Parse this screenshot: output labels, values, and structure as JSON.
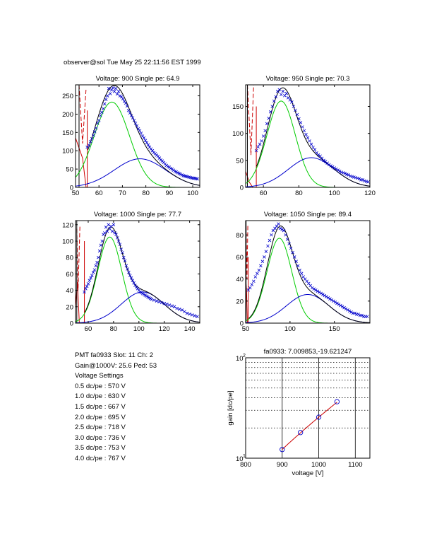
{
  "header": {
    "text": "observer@sol  Tue May 25 22:11:56 EST 1999"
  },
  "info": {
    "pmt_line": "PMT fa0933 Slot: 11 Ch: 2",
    "gain_line": "Gain@1000V: 25.6 Ped: 53",
    "settings_title": "Voltage Settings",
    "settings": [
      "0.5 dc/pe : 570 V",
      "1.0 dc/pe : 630 V",
      "1.5 dc/pe : 667 V",
      "2.0 dc/pe : 695 V",
      "2.5 dc/pe : 718 V",
      "3.0 dc/pe : 736 V",
      "3.5 dc/pe : 753 V",
      "4.0 dc/pe : 767 V"
    ]
  },
  "colors": {
    "fit_total": "#000000",
    "fit_single": "#00cc00",
    "fit_double": "#0000cc",
    "pedestal": "#cc0000",
    "data": "#0000cc"
  },
  "chart_data": [
    {
      "type": "scatter",
      "title": "Voltage: 900 Single pe: 64.9",
      "xlim": [
        50,
        103
      ],
      "ylim": [
        0,
        280
      ],
      "xticks": [
        50,
        60,
        70,
        80,
        90,
        100
      ],
      "yticks": [
        0,
        50,
        100,
        150,
        200,
        250
      ],
      "fit": {
        "cut": 55,
        "single": {
          "amp": 233,
          "mean": 65.5,
          "sigma": 7.5
        },
        "double": {
          "amp": 78,
          "mean": 77.5,
          "sigma": 11
        }
      },
      "pedestal": {
        "solid": [
          [
            50,
            135
          ],
          [
            53,
            80
          ],
          [
            54.5,
            0
          ]
        ],
        "dashed": [
          [
            51.5,
            280
          ],
          [
            53,
            120
          ],
          [
            54.5,
            270
          ]
        ],
        "threshold_x": 55,
        "threshold_y": 210
      },
      "points": [
        [
          55,
          110
        ],
        [
          55.8,
          115
        ],
        [
          56.4,
          125
        ],
        [
          57,
          133
        ],
        [
          57.6,
          142
        ],
        [
          58.2,
          152
        ],
        [
          58.8,
          162
        ],
        [
          59.4,
          175
        ],
        [
          60,
          183
        ],
        [
          60.6,
          196
        ],
        [
          61.2,
          205
        ],
        [
          61.8,
          215
        ],
        [
          62.4,
          228
        ],
        [
          63,
          240
        ],
        [
          63.6,
          250
        ],
        [
          64.2,
          270
        ],
        [
          64.8,
          256
        ],
        [
          65.4,
          266
        ],
        [
          66,
          272
        ],
        [
          66.6,
          262
        ],
        [
          67.2,
          270
        ],
        [
          67.8,
          255
        ],
        [
          68.4,
          262
        ],
        [
          69,
          250
        ],
        [
          69.6,
          247
        ],
        [
          70.2,
          242
        ],
        [
          70.8,
          235
        ],
        [
          71.4,
          230
        ],
        [
          72,
          222
        ],
        [
          72.6,
          210
        ],
        [
          73.2,
          203
        ],
        [
          73.8,
          196
        ],
        [
          74.4,
          190
        ],
        [
          75,
          183
        ],
        [
          75.6,
          175
        ],
        [
          76.2,
          168
        ],
        [
          76.8,
          160
        ],
        [
          77.4,
          155
        ],
        [
          78,
          148
        ],
        [
          78.6,
          140
        ],
        [
          79.2,
          135
        ],
        [
          79.8,
          128
        ],
        [
          80.4,
          122
        ],
        [
          81,
          116
        ],
        [
          81.6,
          110
        ],
        [
          82.2,
          105
        ],
        [
          82.8,
          100
        ],
        [
          83.4,
          95
        ],
        [
          84,
          92
        ],
        [
          84.6,
          88
        ],
        [
          85.2,
          85
        ],
        [
          85.8,
          80
        ],
        [
          86.4,
          75
        ],
        [
          87,
          72
        ],
        [
          87.6,
          68
        ],
        [
          88.2,
          64
        ],
        [
          88.8,
          60
        ],
        [
          89.4,
          57
        ],
        [
          90,
          55
        ],
        [
          90.6,
          52
        ],
        [
          91.2,
          50
        ],
        [
          91.8,
          47
        ],
        [
          92.4,
          44
        ],
        [
          93,
          42
        ],
        [
          93.6,
          40
        ],
        [
          94.2,
          38
        ],
        [
          94.8,
          36
        ],
        [
          95.4,
          34
        ],
        [
          96,
          32
        ],
        [
          96.6,
          31
        ],
        [
          97.2,
          30
        ],
        [
          97.8,
          29
        ],
        [
          98.4,
          28
        ],
        [
          99,
          27
        ],
        [
          99.6,
          26
        ],
        [
          100.2,
          25
        ],
        [
          100.8,
          25
        ],
        [
          101.4,
          24
        ],
        [
          102,
          23
        ]
      ]
    },
    {
      "type": "scatter",
      "title": "Voltage: 950 Single pe: 70.3",
      "xlim": [
        50,
        120
      ],
      "ylim": [
        0,
        190
      ],
      "xticks": [
        60,
        80,
        100,
        120
      ],
      "yticks": [
        0,
        50,
        100,
        150
      ],
      "fit": {
        "cut": 56,
        "single": {
          "amp": 160,
          "mean": 70,
          "sigma": 8
        },
        "double": {
          "amp": 55,
          "mean": 87,
          "sigma": 13
        }
      },
      "pedestal": {
        "solid": [
          [
            50,
            30
          ],
          [
            52,
            10
          ],
          [
            54,
            0
          ]
        ],
        "dashed": [
          [
            51,
            190
          ],
          [
            53,
            60
          ],
          [
            54.5,
            190
          ]
        ],
        "threshold_x": 56,
        "threshold_y": 150
      },
      "points": [
        [
          56,
          68
        ],
        [
          57,
          75
        ],
        [
          58,
          80
        ],
        [
          59,
          86
        ],
        [
          60,
          95
        ],
        [
          61,
          105
        ],
        [
          62,
          118
        ],
        [
          63,
          128
        ],
        [
          64,
          140
        ],
        [
          65,
          150
        ],
        [
          66,
          160
        ],
        [
          67,
          168
        ],
        [
          68,
          178
        ],
        [
          69,
          181
        ],
        [
          70,
          172
        ],
        [
          71,
          178
        ],
        [
          72,
          170
        ],
        [
          73,
          174
        ],
        [
          74,
          166
        ],
        [
          75,
          162
        ],
        [
          76,
          158
        ],
        [
          77,
          150
        ],
        [
          78,
          143
        ],
        [
          79,
          135
        ],
        [
          80,
          127
        ],
        [
          81,
          120
        ],
        [
          82,
          112
        ],
        [
          83,
          105
        ],
        [
          84,
          98
        ],
        [
          85,
          92
        ],
        [
          86,
          86
        ],
        [
          87,
          80
        ],
        [
          88,
          74
        ],
        [
          89,
          70
        ],
        [
          90,
          64
        ],
        [
          91,
          60
        ],
        [
          92,
          58
        ],
        [
          93,
          54
        ],
        [
          94,
          50
        ],
        [
          95,
          48
        ],
        [
          96,
          45
        ],
        [
          97,
          42
        ],
        [
          98,
          40
        ],
        [
          99,
          38
        ],
        [
          100,
          36
        ],
        [
          101,
          34
        ],
        [
          102,
          32
        ],
        [
          103,
          30
        ],
        [
          104,
          28
        ],
        [
          105,
          27
        ],
        [
          106,
          26
        ],
        [
          107,
          24
        ],
        [
          108,
          23
        ],
        [
          109,
          21
        ],
        [
          110,
          20
        ],
        [
          111,
          19
        ],
        [
          112,
          18
        ],
        [
          113,
          17
        ],
        [
          114,
          16
        ],
        [
          115,
          14
        ],
        [
          116,
          14
        ],
        [
          117,
          12
        ],
        [
          118,
          11
        ],
        [
          119,
          10
        ]
      ]
    },
    {
      "type": "scatter",
      "title": "Voltage: 1000 Single pe: 77.7",
      "xlim": [
        50,
        148
      ],
      "ylim": [
        0,
        125
      ],
      "xticks": [
        60,
        80,
        100,
        120,
        140
      ],
      "yticks": [
        0,
        20,
        40,
        60,
        80,
        100,
        120
      ],
      "fit": {
        "cut": 57,
        "single": {
          "amp": 105,
          "mean": 77,
          "sigma": 9.5
        },
        "double": {
          "amp": 38,
          "mean": 103,
          "sigma": 17
        }
      },
      "pedestal": {
        "solid": [
          [
            50,
            20
          ],
          [
            51.5,
            50
          ],
          [
            53,
            0
          ]
        ],
        "dashed": [
          [
            51,
            115
          ],
          [
            52,
            40
          ],
          [
            53.5,
            120
          ]
        ],
        "threshold_x": 57,
        "threshold_y": 100
      },
      "points": [
        [
          57,
          38
        ],
        [
          58,
          42
        ],
        [
          59,
          45
        ],
        [
          60,
          48
        ],
        [
          61,
          52
        ],
        [
          62,
          55
        ],
        [
          63,
          58
        ],
        [
          64,
          62
        ],
        [
          65,
          65
        ],
        [
          66,
          70
        ],
        [
          67,
          74
        ],
        [
          68,
          80
        ],
        [
          69,
          88
        ],
        [
          70,
          95
        ],
        [
          71,
          100
        ],
        [
          72,
          108
        ],
        [
          73,
          110
        ],
        [
          74,
          117
        ],
        [
          75,
          112
        ],
        [
          76,
          120
        ],
        [
          77,
          115
        ],
        [
          78,
          118
        ],
        [
          79,
          112
        ],
        [
          80,
          120
        ],
        [
          81,
          110
        ],
        [
          82,
          108
        ],
        [
          83,
          104
        ],
        [
          84,
          100
        ],
        [
          85,
          96
        ],
        [
          86,
          90
        ],
        [
          87,
          86
        ],
        [
          88,
          80
        ],
        [
          89,
          76
        ],
        [
          90,
          70
        ],
        [
          91,
          66
        ],
        [
          92,
          62
        ],
        [
          93,
          58
        ],
        [
          94,
          55
        ],
        [
          95,
          52
        ],
        [
          96,
          49
        ],
        [
          97,
          46
        ],
        [
          98,
          44
        ],
        [
          99,
          42
        ],
        [
          100,
          40
        ],
        [
          101,
          38
        ],
        [
          102,
          37
        ],
        [
          103,
          36
        ],
        [
          104,
          35
        ],
        [
          105,
          34
        ],
        [
          106,
          33
        ],
        [
          107,
          32
        ],
        [
          108,
          31
        ],
        [
          109,
          30
        ],
        [
          110,
          29
        ],
        [
          112,
          28
        ],
        [
          114,
          27
        ],
        [
          116,
          26
        ],
        [
          118,
          25
        ],
        [
          120,
          24
        ],
        [
          122,
          23
        ],
        [
          124,
          22
        ],
        [
          126,
          21
        ],
        [
          128,
          20
        ],
        [
          130,
          18
        ],
        [
          132,
          17
        ],
        [
          134,
          16
        ],
        [
          136,
          14
        ],
        [
          138,
          12
        ],
        [
          140,
          11
        ],
        [
          142,
          10
        ],
        [
          144,
          9
        ],
        [
          146,
          8
        ]
      ]
    },
    {
      "type": "scatter",
      "title": "Voltage: 1050 Single pe: 89.4",
      "xlim": [
        50,
        190
      ],
      "ylim": [
        0,
        93
      ],
      "xticks": [
        50,
        100,
        150
      ],
      "yticks": [
        0,
        20,
        40,
        60,
        80
      ],
      "fit": {
        "cut": 53,
        "single": {
          "amp": 77,
          "mean": 88,
          "sigma": 14
        },
        "double": {
          "amp": 26,
          "mean": 120,
          "sigma": 24
        }
      },
      "pedestal": {
        "solid": [
          [
            50,
            40
          ],
          [
            51,
            30
          ],
          [
            52,
            0
          ]
        ],
        "dashed": [
          [
            50.5,
            88
          ],
          [
            51.5,
            40
          ],
          [
            52.5,
            90
          ]
        ],
        "threshold_x": 53,
        "threshold_y": 60
      },
      "points": [
        [
          53,
          30
        ],
        [
          55,
          32
        ],
        [
          57,
          35
        ],
        [
          59,
          38
        ],
        [
          61,
          42
        ],
        [
          63,
          45
        ],
        [
          65,
          48
        ],
        [
          67,
          52
        ],
        [
          69,
          56
        ],
        [
          71,
          60
        ],
        [
          73,
          65
        ],
        [
          75,
          70
        ],
        [
          77,
          75
        ],
        [
          79,
          80
        ],
        [
          81,
          84
        ],
        [
          83,
          86
        ],
        [
          85,
          88
        ],
        [
          87,
          90
        ],
        [
          89,
          86
        ],
        [
          91,
          85
        ],
        [
          93,
          84
        ],
        [
          95,
          80
        ],
        [
          97,
          76
        ],
        [
          99,
          72
        ],
        [
          101,
          68
        ],
        [
          103,
          64
        ],
        [
          105,
          60
        ],
        [
          107,
          56
        ],
        [
          109,
          52
        ],
        [
          111,
          48
        ],
        [
          113,
          45
        ],
        [
          115,
          42
        ],
        [
          117,
          40
        ],
        [
          119,
          38
        ],
        [
          121,
          36
        ],
        [
          123,
          34
        ],
        [
          125,
          32
        ],
        [
          127,
          31
        ],
        [
          129,
          30
        ],
        [
          131,
          29
        ],
        [
          133,
          28
        ],
        [
          135,
          27
        ],
        [
          137,
          26
        ],
        [
          139,
          25
        ],
        [
          141,
          24
        ],
        [
          143,
          23
        ],
        [
          145,
          22
        ],
        [
          147,
          21
        ],
        [
          149,
          20
        ],
        [
          151,
          19
        ],
        [
          153,
          18
        ],
        [
          155,
          17
        ],
        [
          157,
          16
        ],
        [
          159,
          15
        ],
        [
          161,
          14
        ],
        [
          163,
          13
        ],
        [
          165,
          12
        ],
        [
          167,
          11
        ],
        [
          169,
          10
        ],
        [
          171,
          9
        ],
        [
          173,
          9
        ],
        [
          175,
          8
        ],
        [
          177,
          8
        ],
        [
          179,
          7
        ],
        [
          181,
          7
        ],
        [
          183,
          6
        ],
        [
          185,
          6
        ],
        [
          187,
          6
        ]
      ]
    },
    {
      "type": "line",
      "title": "fa0933: 7.009853,-19.621247",
      "xlabel": "voltage [V]",
      "ylabel": "gain [dc/pe]",
      "xlim": [
        800,
        1140
      ],
      "ylim": [
        10,
        100
      ],
      "yscale": "log",
      "xticks": [
        800,
        900,
        1000,
        1100
      ],
      "ytick_labels": [
        {
          "base": "10",
          "exp": "1",
          "value": 10
        },
        {
          "base": "10",
          "exp": "2",
          "value": 100
        }
      ],
      "grid": true,
      "x": [
        900,
        950,
        1000,
        1050
      ],
      "y": [
        12.2,
        18.0,
        25.6,
        36.5
      ],
      "fit": {
        "a": 7.009853,
        "b": -19.621247,
        "x_range": [
          900,
          1050
        ]
      }
    }
  ]
}
